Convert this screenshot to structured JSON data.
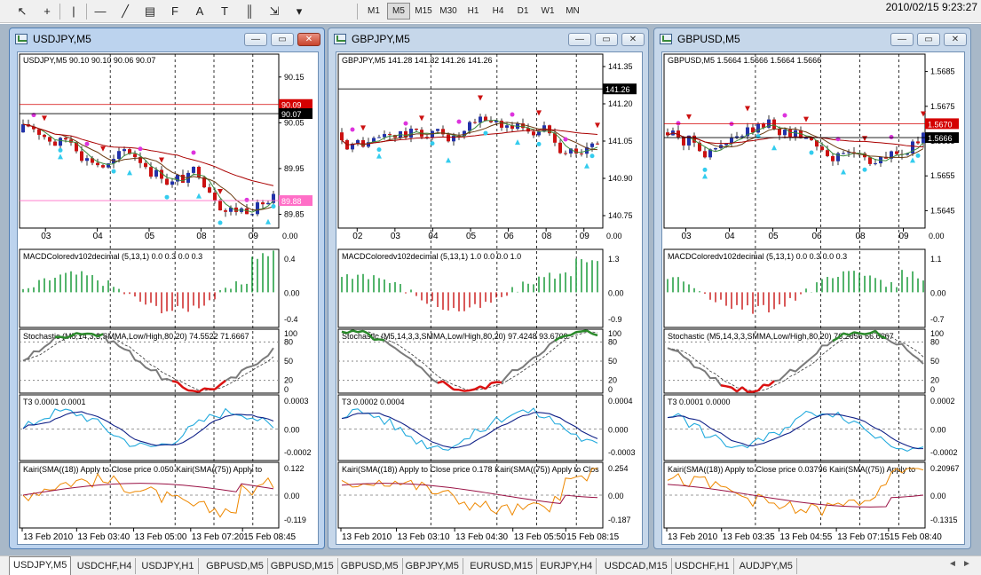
{
  "clock": "2010/02/15  9:23:27",
  "toolbar": {
    "tools": [
      {
        "name": "cursor-icon",
        "glyph": "↖"
      },
      {
        "name": "crosshair-icon",
        "glyph": "+"
      },
      {
        "name": "vertical-line-icon",
        "glyph": "|"
      },
      {
        "name": "horizontal-line-icon",
        "glyph": "—"
      },
      {
        "name": "trendline-icon",
        "glyph": "╱"
      },
      {
        "name": "channel-icon",
        "glyph": "▤"
      },
      {
        "name": "fibonacci-icon",
        "glyph": "F"
      },
      {
        "name": "text-icon",
        "glyph": "A"
      },
      {
        "name": "text-label-icon",
        "glyph": "T"
      },
      {
        "name": "fibo-fan-icon",
        "glyph": "║"
      },
      {
        "name": "arrows-icon",
        "glyph": "⇲"
      },
      {
        "name": "dropdown-icon",
        "glyph": "▾"
      }
    ],
    "timeframes": [
      "M1",
      "M5",
      "M15",
      "M30",
      "H1",
      "H4",
      "D1",
      "W1",
      "MN"
    ],
    "active_timeframe": "M5"
  },
  "windows": [
    {
      "title": "USDJPY,M5",
      "active": true,
      "symbol_line": "USDJPY,M5  90.10 90.10 90.06 90.07",
      "price_ticks": [
        "90.15",
        "90.05",
        "89.95",
        "89.85"
      ],
      "price_badges": [
        {
          "label": "90.09",
          "color": "#d40000",
          "text_color": "#ffffff",
          "level": 90.09
        },
        {
          "label": "90.07",
          "color": "#000000",
          "text_color": "#ffffff",
          "level": 90.07
        },
        {
          "label": "89.88",
          "color": "#ff6ec7",
          "text_color": "#ffffff",
          "level": 89.88
        }
      ],
      "price_range": [
        89.82,
        90.2
      ],
      "date_ticks": [
        "03",
        "04",
        "05",
        "08",
        "09"
      ],
      "macd": {
        "label": "MACDColoredv102decimal (5,13,1) 0.0 0.3 0.0 0.3",
        "ticks": [
          "0.4",
          "0.00",
          "-0.4"
        ]
      },
      "stoch": {
        "label": "Stochastic (M5,14,3,3,SMMA,Low/High,80,20) 74.5522 71.6667",
        "ticks": [
          "100",
          "80",
          "50",
          "20",
          "0"
        ]
      },
      "t3": {
        "label": "T3 0.0001 0.0001",
        "ticks": [
          "0.0003",
          "0.00",
          "-0.0002"
        ]
      },
      "kairi": {
        "label": "Kairi(SMA((18)) Apply to Close price 0.050  Kairi(SMA((75)) Apply to",
        "ticks": [
          "0.122",
          "0.00",
          "-0.119"
        ]
      },
      "time_ticks": [
        "13 Feb 2010",
        "13 Feb 03:40",
        "13 Feb 05:00",
        "13 Feb 07:20",
        "15 Feb 08:45"
      ]
    },
    {
      "title": "GBPJPY,M5",
      "active": false,
      "symbol_line": "GBPJPY,M5  141.28 141.32 141.26 141.26",
      "price_ticks": [
        "141.35",
        "141.20",
        "141.05",
        "140.90",
        "140.75"
      ],
      "price_badges": [
        {
          "label": "141.26",
          "color": "#000000",
          "text_color": "#ffffff",
          "level": 141.26
        }
      ],
      "price_range": [
        140.7,
        141.4
      ],
      "date_ticks": [
        "02",
        "03",
        "04",
        "05",
        "06",
        "08",
        "09"
      ],
      "macd": {
        "label": "MACDColoredv102decimal (5,13,1) 1.0 0.0 0.0 1.0",
        "ticks": [
          "1.3",
          "0.00",
          "-0.9"
        ]
      },
      "stoch": {
        "label": "Stochastic (M5,14,3,3,SMMA,Low/High,80,20) 97.4248 93.6709",
        "ticks": [
          "100",
          "80",
          "50",
          "20",
          "0"
        ]
      },
      "t3": {
        "label": "T3 0.0002 0.0004",
        "ticks": [
          "0.0004",
          "0.000",
          "-0.0003"
        ]
      },
      "kairi": {
        "label": "Kairi(SMA((18)) Apply to Close price 0.178  Kairi(SMA((75)) Apply to Clos",
        "ticks": [
          "0.254",
          "0.00",
          "-0.187"
        ]
      },
      "time_ticks": [
        "13 Feb 2010",
        "13 Feb 03:10",
        "13 Feb 04:30",
        "13 Feb 05:50",
        "15 Feb 08:15"
      ]
    },
    {
      "title": "GBPUSD,M5",
      "active": false,
      "symbol_line": "GBPUSD,M5  1.5664 1.5666 1.5664 1.5666",
      "price_ticks": [
        "1.5685",
        "1.5675",
        "1.5665",
        "1.5655",
        "1.5645"
      ],
      "price_badges": [
        {
          "label": "1.5670",
          "color": "#d40000",
          "text_color": "#ffffff",
          "level": 1.567
        },
        {
          "label": "1.5666",
          "color": "#000000",
          "text_color": "#ffffff",
          "level": 1.5666
        }
      ],
      "price_range": [
        1.564,
        1.569
      ],
      "date_ticks": [
        "03",
        "04",
        "05",
        "06",
        "08",
        "09"
      ],
      "macd": {
        "label": "MACDColoredv102decimal (5,13,1) 0.0 0.3 0.0 0.3",
        "ticks": [
          "1.1",
          "0.00",
          "-0.7"
        ]
      },
      "stoch": {
        "label": "Stochastic (M5,14,3,3,SMMA,Low/High,80,20) 76.2656 66.6667",
        "ticks": [
          "100",
          "80",
          "50",
          "20",
          "0"
        ]
      },
      "t3": {
        "label": "T3 0.0001 0.0000",
        "ticks": [
          "0.0002",
          "0.00",
          "-0.0002"
        ]
      },
      "kairi": {
        "label": "Kairi(SMA((18)) Apply to Close price 0.03796  Kairi(SMA((75)) Apply to",
        "ticks": [
          "0.20967",
          "0.00",
          "-0.1315"
        ]
      },
      "time_ticks": [
        "13 Feb 2010",
        "13 Feb 03:35",
        "13 Feb 04:55",
        "13 Feb 07:15",
        "15 Feb 08:40"
      ]
    }
  ],
  "tabs": [
    "USDJPY,M5",
    "USDCHF,H4",
    "USDJPY,H1",
    "GBPUSD,M5",
    "GBPUSD,M15",
    "GBPUSD,M5",
    "GBPJPY,M5",
    "EURUSD,M15",
    "EURJPY,H4",
    "USDCAD,M15",
    "USDCHF,H1",
    "AUDJPY,M5"
  ],
  "active_tab": 0,
  "colors": {
    "bull": "#2233aa",
    "bear": "#cc1111",
    "macd_up": "#1a9a3a",
    "macd_down": "#cc2222",
    "stoch": "#7a7a7a",
    "stoch_ob": "#2a8a2a",
    "stoch_os": "#dd1111",
    "t3_a": "#22aadd",
    "t3_b": "#112288",
    "kairi_a": "#ee8800",
    "kairi_b": "#991144",
    "ma_red": "#aa0000",
    "ma_brown": "#6b3a10",
    "ma_green": "#3a8a3a",
    "ma_cyan": "#33ccee",
    "ma_magenta": "#dd33dd"
  }
}
